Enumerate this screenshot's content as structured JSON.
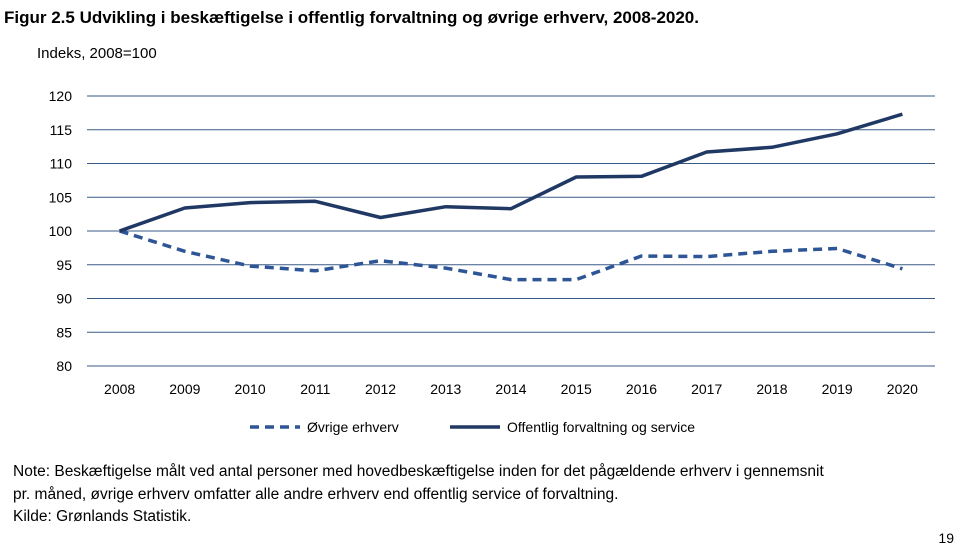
{
  "figure": {
    "title": "Figur 2.5 Udvikling i beskæftigelse i offentlig forvaltning og øvrige erhverv, 2008-2020.",
    "y_unit": "Indeks, 2008=100"
  },
  "chart_data": {
    "type": "line",
    "title": "Figur 2.5 Udvikling i beskæftigelse i offentlig forvaltning og øvrige erhverv, 2008-2020.",
    "ylabel": "Indeks, 2008=100",
    "xlabel": "",
    "x": [
      "2008",
      "2009",
      "2010",
      "2011",
      "2012",
      "2013",
      "2014",
      "2015",
      "2016",
      "2017",
      "2018",
      "2019",
      "2020"
    ],
    "ylim": [
      80,
      120
    ],
    "yticks": [
      80,
      85,
      90,
      95,
      100,
      105,
      110,
      115,
      120
    ],
    "grid": true,
    "legend_position": "bottom",
    "series": [
      {
        "name": "Øvrige erhverv",
        "style": "dashed",
        "color": "#2e5596",
        "values": [
          100,
          97.0,
          94.8,
          94.1,
          95.6,
          94.5,
          92.8,
          92.8,
          96.3,
          96.2,
          97.0,
          97.4,
          94.4
        ]
      },
      {
        "name": "Offentlig forvaltning og service",
        "style": "solid",
        "color": "#203864",
        "values": [
          100,
          103.4,
          104.2,
          104.4,
          102.0,
          103.6,
          103.3,
          108.0,
          108.1,
          111.7,
          112.4,
          114.4,
          117.3
        ]
      }
    ]
  },
  "note": {
    "lines": [
      "Note: Beskæftigelse målt ved antal personer med hovedbeskæftigelse inden for det pågældende erhverv i gennemsnit",
      "pr. måned, øvrige erhverv omfatter alle andre erhverv end offentlig service of forvaltning.",
      "Kilde: Grønlands Statistik."
    ]
  },
  "page_number": "19"
}
